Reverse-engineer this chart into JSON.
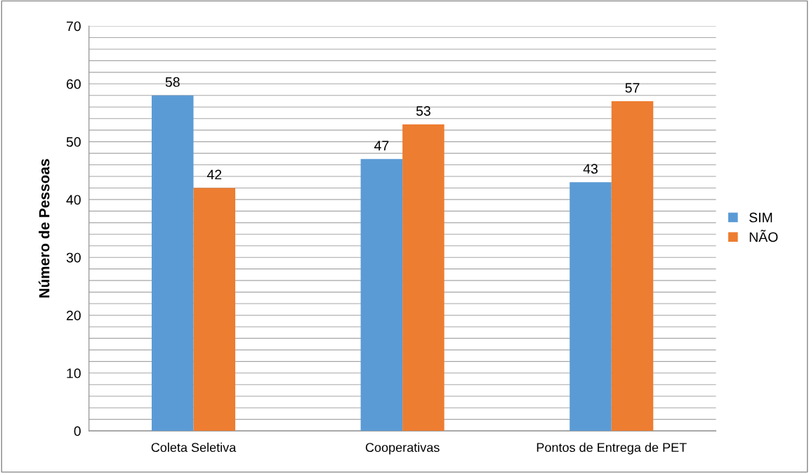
{
  "chart_data": {
    "type": "bar",
    "ylabel": "Número de Pessoas",
    "categories": [
      "Coleta Seletiva",
      "Cooperativas",
      "Pontos de Entrega de PET"
    ],
    "series": [
      {
        "name": "SIM",
        "color": "#5b9bd5",
        "values": [
          58,
          47,
          43
        ]
      },
      {
        "name": "NÃO",
        "color": "#ed7d31",
        "values": [
          42,
          53,
          57
        ]
      }
    ],
    "ylim": [
      0,
      70
    ],
    "yticks": [
      0,
      {
        "value": 2,
        "label": null
      },
      {
        "value": 4,
        "label": null
      },
      {
        "value": 6,
        "label": null
      },
      {
        "value": 8,
        "label": null
      },
      10,
      {
        "value": 12,
        "label": null
      },
      {
        "value": 14,
        "label": null
      },
      {
        "value": 16,
        "label": null
      },
      {
        "value": 18,
        "label": null
      },
      20,
      {
        "value": 22,
        "label": null
      },
      {
        "value": 24,
        "label": null
      },
      {
        "value": 26,
        "label": null
      },
      {
        "value": 28,
        "label": null
      },
      30,
      {
        "value": 32,
        "label": null
      },
      {
        "value": 34,
        "label": null
      },
      {
        "value": 36,
        "label": null
      },
      {
        "value": 38,
        "label": null
      },
      40,
      {
        "value": 42,
        "label": null
      },
      {
        "value": 44,
        "label": null
      },
      {
        "value": 46,
        "label": null
      },
      {
        "value": 48,
        "label": null
      },
      50,
      {
        "value": 52,
        "label": null
      },
      {
        "value": 54,
        "label": null
      },
      {
        "value": 56,
        "label": null
      },
      {
        "value": 58,
        "label": null
      },
      60,
      {
        "value": 62,
        "label": null
      },
      {
        "value": 64,
        "label": null
      },
      {
        "value": 66,
        "label": null
      },
      {
        "value": 68,
        "label": null
      },
      70
    ],
    "grid": "y",
    "legend": "right",
    "data_labels": true
  }
}
